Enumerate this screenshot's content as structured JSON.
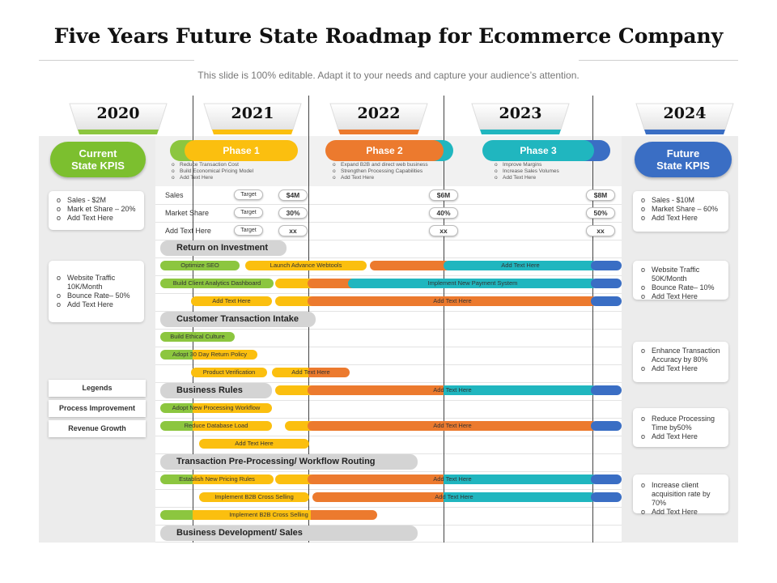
{
  "header": {
    "title": "Five Years Future State Roadmap for Ecommerce Company",
    "subtitle": "This slide is 100% editable. Adapt it to your needs and capture your audience’s attention."
  },
  "years": [
    "2020",
    "2021",
    "2022",
    "2023",
    "2024"
  ],
  "current_state": {
    "label_line1": "Current",
    "label_line2": "State KPIS",
    "boxes": [
      [
        "Sales - $2M",
        "Mark et Share – 20%",
        "Add Text Here"
      ],
      [
        "Website Traffic 10K/Month",
        "Bounce Rate– 50%",
        "Add Text Here"
      ]
    ]
  },
  "future_state": {
    "label_line1": "Future",
    "label_line2": "State KPIS",
    "boxes": [
      [
        "Sales - $10M",
        "Market Share – 60%",
        "Add Text Here"
      ],
      [
        "Website Traffic 50K/Month",
        "Bounce Rate– 10%",
        "Add Text Here"
      ],
      [
        "Enhance Transaction Accuracy by 80%",
        "Add Text Here"
      ],
      [
        "Reduce Processing Time by50%",
        "Add Text Here"
      ],
      [
        "Increase client acquisition rate by 70%",
        "Add Text Here"
      ]
    ]
  },
  "phases": [
    {
      "label": "Phase 1",
      "notes": [
        "Reduce Transaction Cost",
        "Build Economical Pricing Model",
        "Add Text Here"
      ]
    },
    {
      "label": "Phase 2",
      "notes": [
        "Expand B2B and direct web business",
        "Strengthen Processing Capabilities",
        "Add Text Here"
      ]
    },
    {
      "label": "Phase 3",
      "notes": [
        "Improve Margins",
        "Increase Sales Volumes",
        "Add Text Here"
      ]
    }
  ],
  "metrics": [
    {
      "label": "Sales",
      "target": "Target",
      "v2021": "$4M",
      "v2022": "$6M",
      "v2024": "$8M"
    },
    {
      "label": "Market Share",
      "target": "Target",
      "v2021": "30%",
      "v2022": "40%",
      "v2024": "50%"
    },
    {
      "label": "Add Text Here",
      "target": "Target",
      "v2021": "xx",
      "v2022": "xx",
      "v2024": "xx"
    }
  ],
  "sections": [
    "Return on Investment",
    "Customer Transaction Intake",
    "Business Rules",
    "Transaction Pre-Processing/ Workflow Routing",
    "Business Development/ Sales"
  ],
  "bars": {
    "optimize_seo": "Optimize SEO",
    "launch_webtools": "Launch Advance Webtools",
    "add_text": "Add Text Here",
    "build_analytics": "Build Client Analytics Dashboard",
    "implement_payment": "Implement New Payment System",
    "build_culture": "Build Ethical Culture",
    "adopt_return": "Adopt 30 Day Return Policy",
    "product_verification": "Product Verification",
    "adopt_workflow": "Adopt New Processing Workflow",
    "reduce_db": "Reduce Database Load",
    "establish_pricing": "Establish New Pricing Rules",
    "b2b_selling": "Implement B2B Cross Selling"
  },
  "legends": {
    "title": "Legends",
    "items": [
      "Process Improvement",
      "Revenue Growth"
    ]
  },
  "colors": {
    "green": "#8cc63f",
    "yellow": "#fbbf0f",
    "orange": "#ec7a2e",
    "teal": "#20b6bf",
    "blue": "#3a6ec4"
  }
}
